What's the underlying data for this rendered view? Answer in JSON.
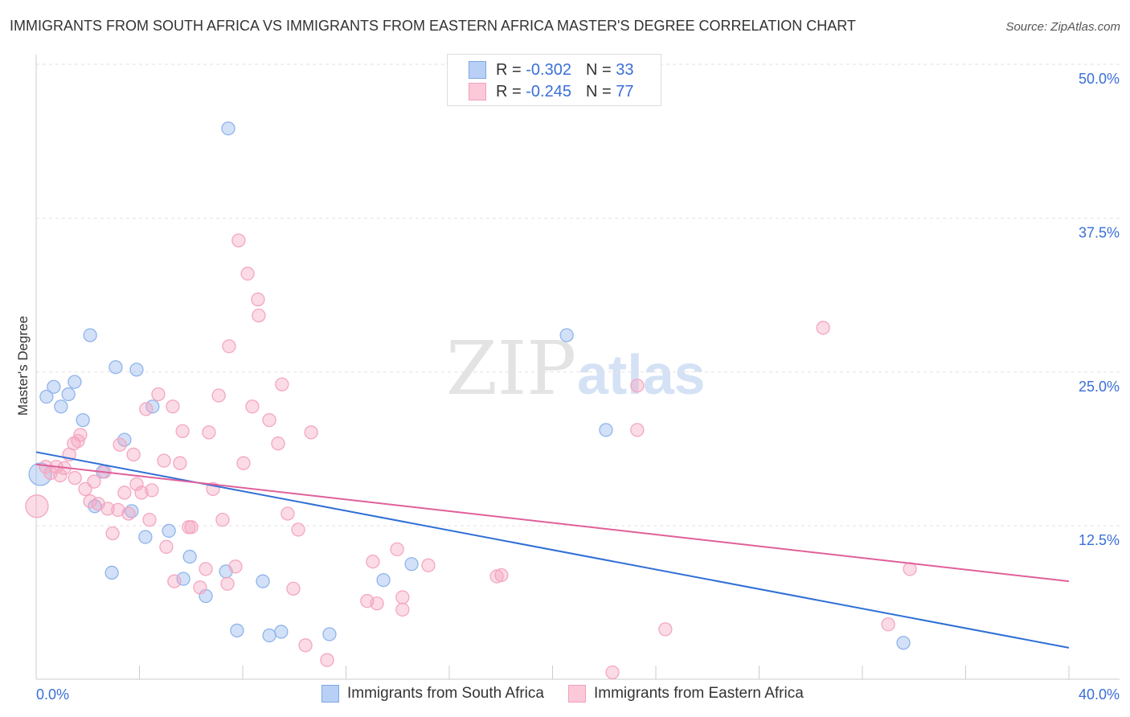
{
  "chart_data": {
    "type": "scatter",
    "title": "IMMIGRANTS FROM SOUTH AFRICA VS IMMIGRANTS FROM EASTERN AFRICA MASTER'S DEGREE CORRELATION CHART",
    "source": "Source: ZipAtlas.com",
    "ylabel": "Master's Degree",
    "xlim": [
      0,
      40
    ],
    "ylim": [
      0,
      50
    ],
    "x_tick_labels": [
      "0.0%",
      "40.0%"
    ],
    "y_ticks": [
      12.5,
      25,
      37.5,
      50
    ],
    "y_tick_labels": [
      "12.5%",
      "25.0%",
      "37.5%",
      "50.0%"
    ],
    "watermark": "ZIPatlas",
    "legend": [
      {
        "r_label": "R = ",
        "r": "-0.302",
        "n_label": "N = ",
        "n": "33"
      },
      {
        "r_label": "R = ",
        "r": "-0.245",
        "n_label": "N = ",
        "n": "77"
      }
    ],
    "series": [
      {
        "name": "Immigrants from South Africa",
        "color": "#8fb4ec",
        "line_color": "#2f6fd6",
        "trend": [
          [
            0,
            19.6
          ],
          [
            40,
            3.7
          ]
        ],
        "points": [
          [
            7.44,
            45.9
          ],
          [
            2.09,
            29.1
          ],
          [
            3.08,
            26.5
          ],
          [
            3.89,
            26.3
          ],
          [
            0.68,
            24.9
          ],
          [
            1.49,
            25.3
          ],
          [
            0.4,
            24.1
          ],
          [
            1.25,
            24.3
          ],
          [
            0.96,
            23.3
          ],
          [
            1.81,
            22.2
          ],
          [
            4.51,
            23.3
          ],
          [
            3.42,
            20.6
          ],
          [
            2.58,
            18.0
          ],
          [
            0.16,
            17.8
          ],
          [
            2.27,
            15.2
          ],
          [
            3.7,
            14.8
          ],
          [
            5.14,
            13.2
          ],
          [
            4.23,
            12.7
          ],
          [
            5.95,
            11.1
          ],
          [
            2.93,
            9.8
          ],
          [
            5.7,
            9.3
          ],
          [
            7.35,
            9.9
          ],
          [
            6.57,
            7.9
          ],
          [
            8.78,
            9.1
          ],
          [
            7.78,
            5.1
          ],
          [
            9.03,
            4.7
          ],
          [
            9.49,
            5.0
          ],
          [
            11.36,
            4.8
          ],
          [
            13.45,
            9.2
          ],
          [
            14.54,
            10.5
          ],
          [
            20.55,
            29.1
          ],
          [
            22.07,
            21.4
          ],
          [
            33.59,
            4.1
          ]
        ]
      },
      {
        "name": "Immigrants from Eastern Africa",
        "color": "#f4a6c0",
        "line_color": "#e0609a",
        "trend": [
          [
            0,
            18.6
          ],
          [
            40,
            9.1
          ]
        ],
        "points": [
          [
            7.84,
            36.8
          ],
          [
            8.19,
            34.1
          ],
          [
            8.59,
            32.0
          ],
          [
            8.62,
            30.7
          ],
          [
            7.47,
            28.2
          ],
          [
            30.48,
            29.7
          ],
          [
            9.52,
            25.1
          ],
          [
            23.28,
            25.0
          ],
          [
            4.73,
            24.3
          ],
          [
            7.07,
            24.2
          ],
          [
            8.37,
            23.3
          ],
          [
            5.29,
            23.3
          ],
          [
            4.26,
            23.1
          ],
          [
            9.03,
            22.2
          ],
          [
            5.67,
            21.3
          ],
          [
            6.69,
            21.2
          ],
          [
            10.65,
            21.2
          ],
          [
            23.28,
            21.4
          ],
          [
            1.71,
            21.0
          ],
          [
            1.46,
            20.3
          ],
          [
            1.62,
            20.5
          ],
          [
            3.24,
            20.2
          ],
          [
            9.37,
            20.3
          ],
          [
            3.77,
            19.4
          ],
          [
            1.28,
            19.4
          ],
          [
            4.95,
            18.9
          ],
          [
            5.57,
            18.7
          ],
          [
            8.03,
            18.7
          ],
          [
            0.37,
            18.4
          ],
          [
            0.78,
            18.4
          ],
          [
            1.09,
            18.3
          ],
          [
            0.56,
            17.9
          ],
          [
            0.93,
            17.7
          ],
          [
            2.65,
            18.0
          ],
          [
            2.24,
            17.2
          ],
          [
            3.89,
            17.0
          ],
          [
            1.9,
            16.6
          ],
          [
            3.42,
            16.3
          ],
          [
            4.08,
            16.3
          ],
          [
            4.48,
            16.5
          ],
          [
            6.85,
            16.6
          ],
          [
            2.09,
            15.6
          ],
          [
            2.4,
            15.4
          ],
          [
            2.77,
            15.0
          ],
          [
            3.17,
            14.9
          ],
          [
            3.58,
            14.6
          ],
          [
            0.03,
            15.2
          ],
          [
            4.39,
            14.1
          ],
          [
            7.22,
            14.1
          ],
          [
            9.74,
            14.6
          ],
          [
            5.91,
            13.5
          ],
          [
            6.01,
            13.5
          ],
          [
            10.15,
            13.3
          ],
          [
            2.96,
            13.0
          ],
          [
            5.04,
            11.9
          ],
          [
            13.98,
            11.7
          ],
          [
            13.04,
            10.7
          ],
          [
            15.19,
            10.4
          ],
          [
            7.72,
            10.3
          ],
          [
            6.57,
            10.1
          ],
          [
            5.35,
            9.1
          ],
          [
            7.41,
            8.9
          ],
          [
            6.35,
            8.6
          ],
          [
            9.96,
            8.5
          ],
          [
            17.84,
            9.5
          ],
          [
            18.02,
            9.6
          ],
          [
            33.84,
            10.1
          ],
          [
            12.82,
            7.5
          ],
          [
            13.2,
            7.3
          ],
          [
            14.19,
            7.8
          ],
          [
            14.19,
            6.8
          ],
          [
            24.37,
            5.2
          ],
          [
            33.0,
            5.6
          ],
          [
            10.43,
            3.9
          ],
          [
            11.27,
            2.7
          ],
          [
            22.32,
            1.7
          ],
          [
            1.5,
            17.5
          ]
        ]
      }
    ]
  }
}
